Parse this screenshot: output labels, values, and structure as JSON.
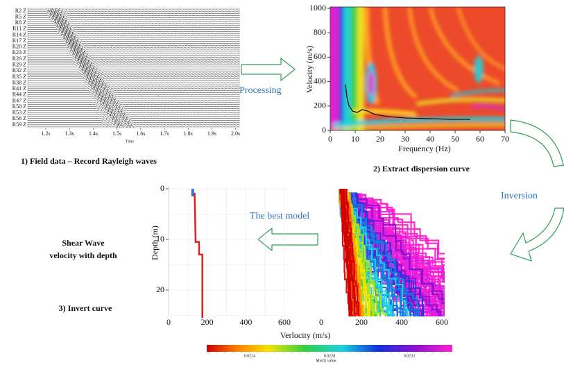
{
  "panels": {
    "field_data": {
      "trace_labels": [
        "R2 Z",
        "R5 Z",
        "R8 Z",
        "R11 Z",
        "R14 Z",
        "R17 Z",
        "R20 Z",
        "R23 Z",
        "R26 Z",
        "R29 Z",
        "R32 Z",
        "R35 Z",
        "R38 Z",
        "R41 Z",
        "R44 Z",
        "R47 Z",
        "R50 Z",
        "R53 Z",
        "R56 Z",
        "R59 Z"
      ],
      "time_ticks": [
        "1.2s",
        "1.3s",
        "1.4s",
        "1.5s",
        "1.6s",
        "1.7s",
        "1.8s",
        "1.9s",
        "2.0s"
      ],
      "x_label": "Time",
      "caption": "1) Field data – Record Rayleigh waves"
    },
    "dispersion": {
      "y_label": "Velocity (m/s)",
      "yticks": [
        "0",
        "200",
        "400",
        "600",
        "800",
        "1000"
      ],
      "x_label": "Frequency (Hz)",
      "xticks": [
        "0",
        "10",
        "20",
        "30",
        "40",
        "50",
        "60",
        "70"
      ],
      "caption": "2) Extract dispersion curve"
    },
    "inversion": {
      "title_lines": [
        "Shear Wave",
        "velocity with depth"
      ],
      "y_label": "Depth (m)",
      "yticks": [
        "0",
        "10",
        "20"
      ],
      "left_xticks": [
        "0",
        "200",
        "400",
        "600"
      ],
      "right_xticks": [
        "0",
        "200",
        "400",
        "600"
      ],
      "x_label": "Verlocity (m/s)",
      "colorbar_ticks": [
        "0.0224",
        "0.0228",
        "0.0232"
      ],
      "colorbar_label": "Misfit value",
      "caption": "3) Invert curve"
    }
  },
  "arrows": {
    "processing": "Processing",
    "inversion": "Inversion",
    "best_model": "The best model"
  }
}
